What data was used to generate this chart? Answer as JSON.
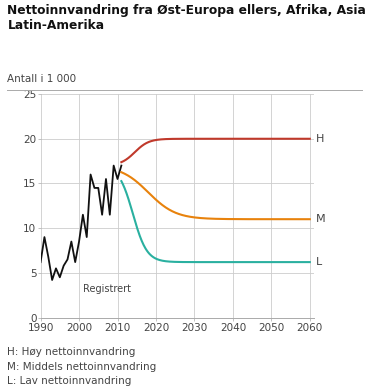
{
  "title_line1": "Nettoinnvandring fra Øst-Europa ellers, Afrika, Asia og",
  "title_line2": "Latin-Amerika",
  "subtitle": "Antall i 1 000",
  "xlim": [
    1990,
    2061
  ],
  "ylim": [
    0,
    25
  ],
  "yticks": [
    0,
    5,
    10,
    15,
    20,
    25
  ],
  "xticks": [
    1990,
    2000,
    2010,
    2020,
    2030,
    2040,
    2050,
    2060
  ],
  "color_H": "#c0392b",
  "color_M": "#e8820c",
  "color_L": "#2ab0a0",
  "color_black": "#111111",
  "label_H": "H",
  "label_M": "M",
  "label_L": "L",
  "label_reg": "Registrert",
  "legend_H": "H: Høy nettoinnvandring",
  "legend_M": "M: Middels nettoinnvandring",
  "legend_L": "L: Lav nettoinnvandring",
  "grid_color": "#cccccc",
  "bg_color": "#ffffff",
  "text_color": "#444444",
  "reg_years": [
    1990,
    1991,
    1992,
    1993,
    1994,
    1995,
    1996,
    1997,
    1998,
    1999,
    2000,
    2001,
    2002,
    2003,
    2004,
    2005,
    2006,
    2007,
    2008,
    2009,
    2010,
    2011
  ],
  "reg_vals": [
    6.2,
    9.0,
    6.8,
    4.2,
    5.5,
    4.5,
    5.8,
    6.5,
    8.5,
    6.2,
    8.5,
    11.5,
    9.0,
    16.0,
    14.5,
    14.5,
    11.5,
    15.5,
    11.5,
    17.0,
    15.5,
    17.0
  ]
}
